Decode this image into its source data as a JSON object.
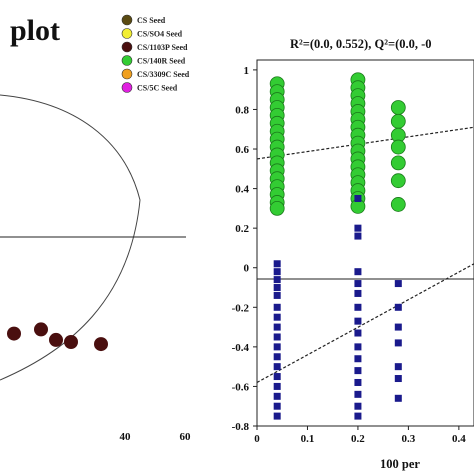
{
  "chart_data": [
    {
      "type": "scatter",
      "title": "plot",
      "x_ticks": [
        "40",
        "60"
      ],
      "x_tick_values": [
        40,
        60
      ],
      "series": [
        {
          "name": "CS/1103P Seed",
          "color": "#4a0f0f",
          "points": [
            [
              3,
              -4.6
            ],
            [
              12,
              -4.4
            ],
            [
              17,
              -4.9
            ],
            [
              22,
              -5.0
            ],
            [
              32,
              -5.1
            ]
          ]
        }
      ]
    },
    {
      "type": "scatter",
      "title": "R²=(0.0, 0.552), Q²=(0.0, -0",
      "xlabel": "100 per",
      "x_ticks": [
        "0",
        "0.1",
        "0.2",
        "0.3",
        "0.4"
      ],
      "y_ticks": [
        "1",
        "0.8",
        "0.6",
        "0.4",
        "0.2",
        "0",
        "-0.2",
        "-0.4",
        "-0.6",
        "-0.8"
      ],
      "xlim": [
        0,
        0.43
      ],
      "ylim": [
        -0.8,
        1.05
      ],
      "series": [
        {
          "name": "R2",
          "color": "#33cc33",
          "marker": "circle",
          "points": [
            [
              0.04,
              0.93
            ],
            [
              0.04,
              0.89
            ],
            [
              0.04,
              0.85
            ],
            [
              0.04,
              0.81
            ],
            [
              0.04,
              0.77
            ],
            [
              0.04,
              0.73
            ],
            [
              0.04,
              0.69
            ],
            [
              0.04,
              0.65
            ],
            [
              0.04,
              0.61
            ],
            [
              0.04,
              0.57
            ],
            [
              0.04,
              0.53
            ],
            [
              0.04,
              0.49
            ],
            [
              0.04,
              0.45
            ],
            [
              0.04,
              0.41
            ],
            [
              0.04,
              0.37
            ],
            [
              0.04,
              0.33
            ],
            [
              0.04,
              0.3
            ],
            [
              0.2,
              0.95
            ],
            [
              0.2,
              0.91
            ],
            [
              0.2,
              0.87
            ],
            [
              0.2,
              0.83
            ],
            [
              0.2,
              0.79
            ],
            [
              0.2,
              0.75
            ],
            [
              0.2,
              0.71
            ],
            [
              0.2,
              0.67
            ],
            [
              0.2,
              0.63
            ],
            [
              0.2,
              0.59
            ],
            [
              0.2,
              0.55
            ],
            [
              0.2,
              0.51
            ],
            [
              0.2,
              0.47
            ],
            [
              0.2,
              0.43
            ],
            [
              0.2,
              0.39
            ],
            [
              0.2,
              0.35
            ],
            [
              0.2,
              0.31
            ],
            [
              0.28,
              0.81
            ],
            [
              0.28,
              0.74
            ],
            [
              0.28,
              0.67
            ],
            [
              0.28,
              0.61
            ],
            [
              0.28,
              0.53
            ],
            [
              0.28,
              0.44
            ],
            [
              0.28,
              0.32
            ]
          ]
        },
        {
          "name": "Q2",
          "color": "#1a1a8c",
          "marker": "square",
          "points": [
            [
              0.04,
              0.02
            ],
            [
              0.04,
              -0.02
            ],
            [
              0.04,
              -0.06
            ],
            [
              0.04,
              -0.1
            ],
            [
              0.04,
              -0.14
            ],
            [
              0.04,
              -0.2
            ],
            [
              0.04,
              -0.25
            ],
            [
              0.04,
              -0.3
            ],
            [
              0.04,
              -0.35
            ],
            [
              0.04,
              -0.4
            ],
            [
              0.04,
              -0.45
            ],
            [
              0.04,
              -0.5
            ],
            [
              0.04,
              -0.55
            ],
            [
              0.04,
              -0.6
            ],
            [
              0.04,
              -0.65
            ],
            [
              0.04,
              -0.7
            ],
            [
              0.04,
              -0.75
            ],
            [
              0.2,
              0.35
            ],
            [
              0.2,
              0.2
            ],
            [
              0.2,
              0.16
            ],
            [
              0.2,
              -0.02
            ],
            [
              0.2,
              -0.08
            ],
            [
              0.2,
              -0.13
            ],
            [
              0.2,
              -0.2
            ],
            [
              0.2,
              -0.27
            ],
            [
              0.2,
              -0.33
            ],
            [
              0.2,
              -0.4
            ],
            [
              0.2,
              -0.46
            ],
            [
              0.2,
              -0.52
            ],
            [
              0.2,
              -0.58
            ],
            [
              0.2,
              -0.64
            ],
            [
              0.2,
              -0.7
            ],
            [
              0.2,
              -0.75
            ],
            [
              0.28,
              -0.08
            ],
            [
              0.28,
              -0.2
            ],
            [
              0.28,
              -0.3
            ],
            [
              0.28,
              -0.38
            ],
            [
              0.28,
              -0.5
            ],
            [
              0.28,
              -0.56
            ],
            [
              0.28,
              -0.66
            ]
          ]
        }
      ],
      "regression_lines": [
        {
          "name": "R2 fit",
          "from": [
            0,
            0.55
          ],
          "to": [
            0.43,
            0.71
          ],
          "color": "#222222"
        },
        {
          "name": "Q2 fit",
          "from": [
            0,
            -0.58
          ],
          "to": [
            0.43,
            0.02
          ],
          "color": "#222222"
        }
      ]
    }
  ],
  "legend": [
    {
      "label": "CS Seed",
      "color": "#5a4a12"
    },
    {
      "label": "CS/SO4 Seed",
      "color": "#f2ee33"
    },
    {
      "label": "CS/1103P Seed",
      "color": "#4a0f0f"
    },
    {
      "label": "CS/140R Seed",
      "color": "#33cc33"
    },
    {
      "label": "CS/3309C Seed",
      "color": "#f0a020"
    },
    {
      "label": "CS/5C Seed",
      "color": "#e020e0"
    }
  ]
}
